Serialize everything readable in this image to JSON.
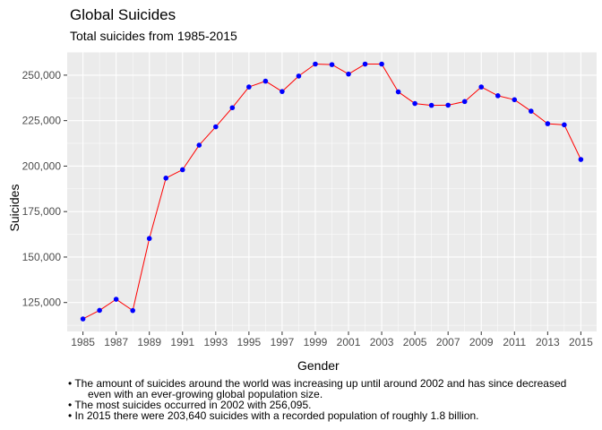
{
  "chart_data": {
    "type": "line",
    "title": "Global Suicides",
    "subtitle": "Total suicides from 1985-2015",
    "xlabel": "Gender",
    "ylabel": "Suicides",
    "x": [
      1985,
      1986,
      1987,
      1988,
      1989,
      1990,
      1991,
      1992,
      1993,
      1994,
      1995,
      1996,
      1997,
      1998,
      1999,
      2000,
      2001,
      2002,
      2003,
      2004,
      2005,
      2006,
      2007,
      2008,
      2009,
      2010,
      2011,
      2012,
      2013,
      2014,
      2015
    ],
    "y": [
      116000,
      120700,
      126800,
      120600,
      160200,
      193400,
      198000,
      211500,
      221600,
      232100,
      243500,
      246700,
      241000,
      249500,
      256100,
      255800,
      250600,
      256095,
      256100,
      240800,
      234400,
      233400,
      233500,
      235500,
      243500,
      238700,
      236500,
      230200,
      223300,
      222700,
      203640
    ],
    "x_ticks": [
      1985,
      1987,
      1989,
      1991,
      1993,
      1995,
      1997,
      1999,
      2001,
      2003,
      2005,
      2007,
      2009,
      2011,
      2013,
      2015
    ],
    "x_tick_labels": [
      "1985",
      "1987",
      "1989",
      "1991",
      "1993",
      "1995",
      "1997",
      "1999",
      "2001",
      "2003",
      "2005",
      "2007",
      "2009",
      "2011",
      "2013",
      "2015"
    ],
    "y_ticks": [
      125000,
      150000,
      175000,
      200000,
      225000,
      250000
    ],
    "y_tick_labels": [
      "125,000",
      "150,000",
      "175,000",
      "200,000",
      "225,000",
      "250,000"
    ],
    "xlim": [
      1984.05,
      2015.95
    ],
    "ylim": [
      109100,
      262750
    ],
    "line_color": "#ff0000",
    "point_color": "#0000ff",
    "panel_background": "#ebebeb",
    "grid_color": "#ffffff",
    "grid": true,
    "legend": "none"
  },
  "caption": {
    "lines": [
      {
        "text": "• The amount of suicides around the world was increasing up until around 2002 and has since decreased",
        "indent": false
      },
      {
        "text": "even with an ever-growing global population size.",
        "indent": true
      },
      {
        "text": "• The most suicides occurred in 2002 with 256,095.",
        "indent": false
      },
      {
        "text": "• In 2015 there were 203,640 suicides with a recorded population of roughly 1.8 billion.",
        "indent": false
      }
    ]
  }
}
